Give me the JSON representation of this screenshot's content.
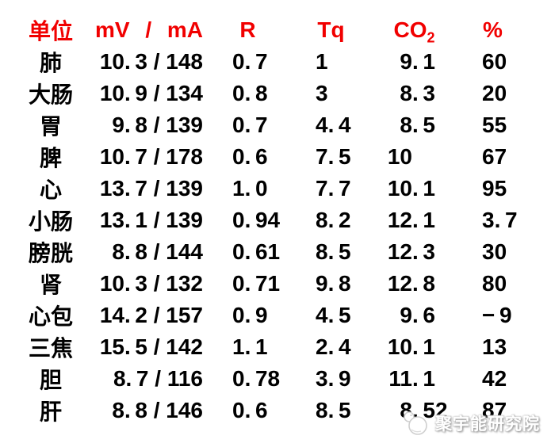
{
  "colors": {
    "header_text": "#f10000",
    "body_text": "#000000",
    "background": "#ffffff",
    "watermark_gray": "#cfcfcf"
  },
  "table": {
    "headers": {
      "unit": "单位",
      "mv_ma": "mV / mA",
      "r": "R",
      "tq": "Tq",
      "co2_base": "CO",
      "co2_sub": "2",
      "percent": "%"
    },
    "rows": [
      {
        "unit": "肺",
        "mv": "10.3",
        "ma": "148",
        "r": "0.7",
        "tq": "1",
        "co2": "9.1",
        "percent": "60"
      },
      {
        "unit": "大肠",
        "mv": "10.9",
        "ma": "134",
        "r": "0.8",
        "tq": "3",
        "co2": "8.3",
        "percent": "20"
      },
      {
        "unit": "胃",
        "mv": "9.8",
        "ma": "139",
        "r": "0.7",
        "tq": "4.4",
        "co2": "8.5",
        "percent": "55"
      },
      {
        "unit": "脾",
        "mv": "10.7",
        "ma": "178",
        "r": "0.6",
        "tq": "7.5",
        "co2": "10",
        "percent": "67"
      },
      {
        "unit": "心",
        "mv": "13.7",
        "ma": "139",
        "r": "1.0",
        "tq": "7.7",
        "co2": "10.1",
        "percent": "95"
      },
      {
        "unit": "小肠",
        "mv": "13.1",
        "ma": "139",
        "r": "0.94",
        "tq": "8.2",
        "co2": "12.1",
        "percent": "3.7"
      },
      {
        "unit": "膀胱",
        "mv": "8.8",
        "ma": "144",
        "r": "0.61",
        "tq": "8.5",
        "co2": "12.3",
        "percent": "30"
      },
      {
        "unit": "肾",
        "mv": "10.3",
        "ma": "132",
        "r": "0.71",
        "tq": "9.8",
        "co2": "12.8",
        "percent": "80"
      },
      {
        "unit": "心包",
        "mv": "14.2",
        "ma": "157",
        "r": "0.9",
        "tq": "4.5",
        "co2": "9.6",
        "percent": "-9"
      },
      {
        "unit": "三焦",
        "mv": "15.5",
        "ma": "142",
        "r": "1.1",
        "tq": "2.4",
        "co2": "10.1",
        "percent": "13"
      },
      {
        "unit": "胆",
        "mv": "8.7",
        "ma": "116",
        "r": "0.78",
        "tq": "3.9",
        "co2": "11.1",
        "percent": "42"
      },
      {
        "unit": "肝",
        "mv": "8.8",
        "ma": "146",
        "r": "0.6",
        "tq": "8.5",
        "co2": "8.52",
        "percent": "87"
      }
    ]
  },
  "watermark": {
    "text": "聚宇能研究院"
  },
  "chart_data": {
    "type": "table",
    "columns": [
      "单位",
      "mV / mA",
      "R",
      "Tq",
      "CO2",
      "%"
    ],
    "rows": [
      [
        "肺",
        "10.3 / 148",
        "0.7",
        "1",
        "9.1",
        "60"
      ],
      [
        "大肠",
        "10.9 / 134",
        "0.8",
        "3",
        "8.3",
        "20"
      ],
      [
        "胃",
        "9.8 / 139",
        "0.7",
        "4.4",
        "8.5",
        "55"
      ],
      [
        "脾",
        "10.7 / 178",
        "0.6",
        "7.5",
        "10",
        "67"
      ],
      [
        "心",
        "13.7 / 139",
        "1.0",
        "7.7",
        "10.1",
        "95"
      ],
      [
        "小肠",
        "13.1 / 139",
        "0.94",
        "8.2",
        "12.1",
        "3.7"
      ],
      [
        "膀胱",
        "8.8 / 144",
        "0.61",
        "8.5",
        "12.3",
        "30"
      ],
      [
        "肾",
        "10.3 / 132",
        "0.71",
        "9.8",
        "12.8",
        "80"
      ],
      [
        "心包",
        "14.2 / 157",
        "0.9",
        "4.5",
        "9.6",
        "-9"
      ],
      [
        "三焦",
        "15.5 / 142",
        "1.1",
        "2.4",
        "10.1",
        "13"
      ],
      [
        "胆",
        "8.7 / 116",
        "0.78",
        "3.9",
        "11.1",
        "42"
      ],
      [
        "肝",
        "8.8 / 146",
        "0.6",
        "8.5",
        "8.52",
        "87"
      ]
    ]
  }
}
